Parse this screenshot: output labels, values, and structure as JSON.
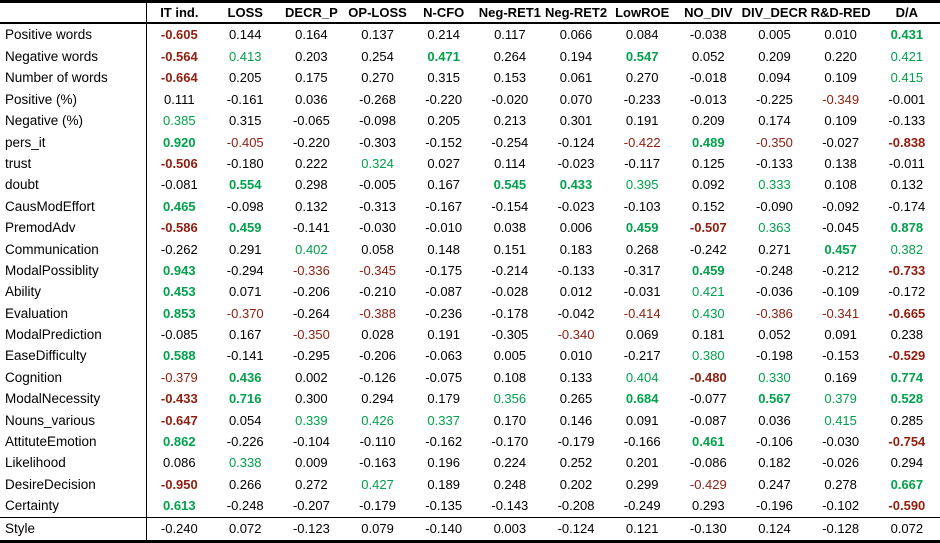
{
  "colors": {
    "positive_value": "#00A14B",
    "negative_value": "#8F2011",
    "text": "#000000",
    "background": "#FFFFFF",
    "border": "#000000"
  },
  "chart_data": {
    "type": "table",
    "corner_label": "",
    "columns": [
      "IT ind.",
      "LOSS",
      "DECR_P",
      "OP-LOSS",
      "N-CFO",
      "Neg-RET1",
      "Neg-RET2",
      "LowROE",
      "NO_DIV",
      "DIV_DECR",
      "R&D-RED",
      "D/A"
    ],
    "fmt_key": {
      ".": "black",
      "g": "green",
      "G": "green bold",
      "r": "dark-red",
      "R": "dark-red bold"
    },
    "rows": [
      {
        "label": "Positive words",
        "values": [
          "-0.605",
          "0.144",
          "0.164",
          "0.137",
          "0.214",
          "0.117",
          "0.066",
          "0.084",
          "-0.038",
          "0.005",
          "0.010",
          "0.431"
        ],
        "fmt": "R..........G"
      },
      {
        "label": "Negative words",
        "values": [
          "-0.564",
          "0.413",
          "0.203",
          "0.254",
          "0.471",
          "0.264",
          "0.194",
          "0.547",
          "0.052",
          "0.209",
          "0.220",
          "0.421"
        ],
        "fmt": "Rg..G..G...g"
      },
      {
        "label": "Number of words",
        "values": [
          "-0.664",
          "0.205",
          "0.175",
          "0.270",
          "0.315",
          "0.153",
          "0.061",
          "0.270",
          "-0.018",
          "0.094",
          "0.109",
          "0.415"
        ],
        "fmt": "R..........g"
      },
      {
        "label": "Positive (%)",
        "values": [
          "0.111",
          "-0.161",
          "0.036",
          "-0.268",
          "-0.220",
          "-0.020",
          "0.070",
          "-0.233",
          "-0.013",
          "-0.225",
          "-0.349",
          "-0.001"
        ],
        "fmt": "..........r."
      },
      {
        "label": "Negative (%)",
        "values": [
          "0.385",
          "0.315",
          "-0.065",
          "-0.098",
          "0.205",
          "0.213",
          "0.301",
          "0.191",
          "0.209",
          "0.174",
          "0.109",
          "-0.133"
        ],
        "fmt": "g..........."
      },
      {
        "label": "pers_it",
        "values": [
          "0.920",
          "-0.405",
          "-0.220",
          "-0.303",
          "-0.152",
          "-0.254",
          "-0.124",
          "-0.422",
          "0.489",
          "-0.350",
          "-0.027",
          "-0.838"
        ],
        "fmt": "Gr.....rGr.R"
      },
      {
        "label": "trust",
        "values": [
          "-0.506",
          "-0.180",
          "0.222",
          "0.324",
          "0.027",
          "0.114",
          "-0.023",
          "-0.117",
          "0.125",
          "-0.133",
          "0.138",
          "-0.011"
        ],
        "fmt": "R..g........"
      },
      {
        "label": "doubt",
        "values": [
          "-0.081",
          "0.554",
          "0.298",
          "-0.005",
          "0.167",
          "0.545",
          "0.433",
          "0.395",
          "0.092",
          "0.333",
          "0.108",
          "0.132"
        ],
        "fmt": ".G...GGg.g.."
      },
      {
        "label": "CausModEffort",
        "values": [
          "0.465",
          "-0.098",
          "0.132",
          "-0.313",
          "-0.167",
          "-0.154",
          "-0.023",
          "-0.103",
          "0.152",
          "-0.090",
          "-0.092",
          "-0.174"
        ],
        "fmt": "G..........."
      },
      {
        "label": "PremodAdv",
        "values": [
          "-0.586",
          "0.459",
          "-0.141",
          "-0.030",
          "-0.010",
          "0.038",
          "0.006",
          "0.459",
          "-0.507",
          "0.363",
          "-0.045",
          "0.878"
        ],
        "fmt": "RG.....GRg.G"
      },
      {
        "label": "Communication",
        "values": [
          "-0.262",
          "0.291",
          "0.402",
          "0.058",
          "0.148",
          "0.151",
          "0.183",
          "0.268",
          "-0.242",
          "0.271",
          "0.457",
          "0.382"
        ],
        "fmt": "..g.......Gg"
      },
      {
        "label": "ModalPossiblity",
        "values": [
          "0.943",
          "-0.294",
          "-0.336",
          "-0.345",
          "-0.175",
          "-0.214",
          "-0.133",
          "-0.317",
          "0.459",
          "-0.248",
          "-0.212",
          "-0.733"
        ],
        "fmt": "G.rr....G..R"
      },
      {
        "label": "Ability",
        "values": [
          "0.453",
          "0.071",
          "-0.206",
          "-0.210",
          "-0.087",
          "-0.028",
          "0.012",
          "-0.031",
          "0.421",
          "-0.036",
          "-0.109",
          "-0.172"
        ],
        "fmt": "G.......g..."
      },
      {
        "label": "Evaluation",
        "values": [
          "0.853",
          "-0.370",
          "-0.264",
          "-0.388",
          "-0.236",
          "-0.178",
          "-0.042",
          "-0.414",
          "0.430",
          "-0.386",
          "-0.341",
          "-0.665"
        ],
        "fmt": "Gr.r...rgrrR"
      },
      {
        "label": "ModalPrediction",
        "values": [
          "-0.085",
          "0.167",
          "-0.350",
          "0.028",
          "0.191",
          "-0.305",
          "-0.340",
          "0.069",
          "0.181",
          "0.052",
          "0.091",
          "0.238"
        ],
        "fmt": "..r...r....."
      },
      {
        "label": "EaseDifficulty",
        "values": [
          "0.588",
          "-0.141",
          "-0.295",
          "-0.206",
          "-0.063",
          "0.005",
          "0.010",
          "-0.217",
          "0.380",
          "-0.198",
          "-0.153",
          "-0.529"
        ],
        "fmt": "G.......g..R"
      },
      {
        "label": "Cognition",
        "values": [
          "-0.379",
          "0.436",
          "0.002",
          "-0.126",
          "-0.075",
          "0.108",
          "0.133",
          "0.404",
          "-0.480",
          "0.330",
          "0.169",
          "0.774"
        ],
        "fmt": "rG.....gRg.G"
      },
      {
        "label": "ModalNecessity",
        "values": [
          "-0.433",
          "0.716",
          "0.300",
          "0.294",
          "0.179",
          "0.356",
          "0.265",
          "0.684",
          "-0.077",
          "0.567",
          "0.379",
          "0.528"
        ],
        "fmt": "RG...g.G.GgG"
      },
      {
        "label": "Nouns_various",
        "values": [
          "-0.647",
          "0.054",
          "0.339",
          "0.426",
          "0.337",
          "0.170",
          "0.146",
          "0.091",
          "-0.087",
          "0.036",
          "0.415",
          "0.285"
        ],
        "fmt": "R.ggg.....g."
      },
      {
        "label": "AttituteEmotion",
        "values": [
          "0.862",
          "-0.226",
          "-0.104",
          "-0.110",
          "-0.162",
          "-0.170",
          "-0.179",
          "-0.166",
          "0.461",
          "-0.106",
          "-0.030",
          "-0.754"
        ],
        "fmt": "G.......G..R"
      },
      {
        "label": "Likelihood",
        "values": [
          "0.086",
          "0.338",
          "0.009",
          "-0.163",
          "0.196",
          "0.224",
          "0.252",
          "0.201",
          "-0.086",
          "0.182",
          "-0.026",
          "0.294"
        ],
        "fmt": ".g.........."
      },
      {
        "label": "DesireDecision",
        "values": [
          "-0.950",
          "0.266",
          "0.272",
          "0.427",
          "0.189",
          "0.248",
          "0.202",
          "0.299",
          "-0.429",
          "0.247",
          "0.278",
          "0.667"
        ],
        "fmt": "R..g....r..G"
      },
      {
        "label": "Certainty",
        "values": [
          "0.613",
          "-0.248",
          "-0.207",
          "-0.179",
          "-0.135",
          "-0.143",
          "-0.208",
          "-0.249",
          "0.293",
          "-0.196",
          "-0.102",
          "-0.590"
        ],
        "fmt": "G..........R"
      },
      {
        "label": "Style",
        "values": [
          "-0.240",
          "0.072",
          "-0.123",
          "0.079",
          "-0.140",
          "0.003",
          "-0.124",
          "0.121",
          "-0.130",
          "0.124",
          "-0.128",
          "0.072"
        ],
        "fmt": "............"
      }
    ]
  }
}
